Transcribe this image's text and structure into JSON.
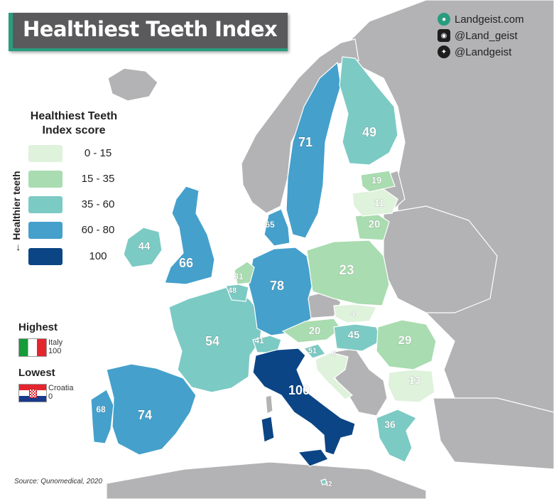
{
  "title": "Healthiest Teeth Index",
  "social": {
    "website": "Landgeist.com",
    "instagram": "@Land_geist",
    "twitter": "@Landgeist"
  },
  "legend": {
    "title_line1": "Healthiest Teeth",
    "title_line2": "Index score",
    "axis_label": "← Healthier teeth",
    "bins": [
      {
        "label": "0 - 15",
        "color": "#dff2dc"
      },
      {
        "label": "15 - 35",
        "color": "#a9dcb0"
      },
      {
        "label": "35 - 60",
        "color": "#7ccac4"
      },
      {
        "label": "60 - 80",
        "color": "#45a0cc"
      },
      {
        "label": "100",
        "color": "#0b4585"
      }
    ]
  },
  "highest": {
    "heading": "Highest",
    "country": "Italy",
    "value": "100"
  },
  "lowest": {
    "heading": "Lowest",
    "country": "Croatia",
    "value": "0"
  },
  "source": "Source: Qunomedical, 2020",
  "colors": {
    "non_data_land": "#b3b3b5",
    "sea": "#ffffff",
    "accent": "#2a9d7f",
    "title_bg": "#5a5a5c"
  },
  "chart_data": {
    "type": "choropleth",
    "title": "Healthiest Teeth Index",
    "metric": "Healthiest Teeth Index score",
    "regions": [
      {
        "name": "Italy",
        "value": 100
      },
      {
        "name": "Germany",
        "value": 78
      },
      {
        "name": "Portugal",
        "value": 68
      },
      {
        "name": "Spain",
        "value": 74
      },
      {
        "name": "Sweden",
        "value": 71
      },
      {
        "name": "United Kingdom",
        "value": 66
      },
      {
        "name": "Denmark",
        "value": 65
      },
      {
        "name": "France",
        "value": 54
      },
      {
        "name": "Slovenia",
        "value": 51
      },
      {
        "name": "Finland",
        "value": 49
      },
      {
        "name": "Belgium",
        "value": 48
      },
      {
        "name": "Hungary",
        "value": 45
      },
      {
        "name": "Ireland",
        "value": 44
      },
      {
        "name": "Malta",
        "value": 42
      },
      {
        "name": "Switzerland",
        "value": 41
      },
      {
        "name": "Greece",
        "value": 36
      },
      {
        "name": "Netherlands",
        "value": 31
      },
      {
        "name": "Romania",
        "value": 29
      },
      {
        "name": "Poland",
        "value": 23
      },
      {
        "name": "Austria",
        "value": 20
      },
      {
        "name": "Lithuania",
        "value": 20
      },
      {
        "name": "Estonia",
        "value": 19
      },
      {
        "name": "Bulgaria",
        "value": 13
      },
      {
        "name": "Latvia",
        "value": 11
      },
      {
        "name": "Slovakia",
        "value": 4
      },
      {
        "name": "Croatia",
        "value": 0
      }
    ]
  }
}
